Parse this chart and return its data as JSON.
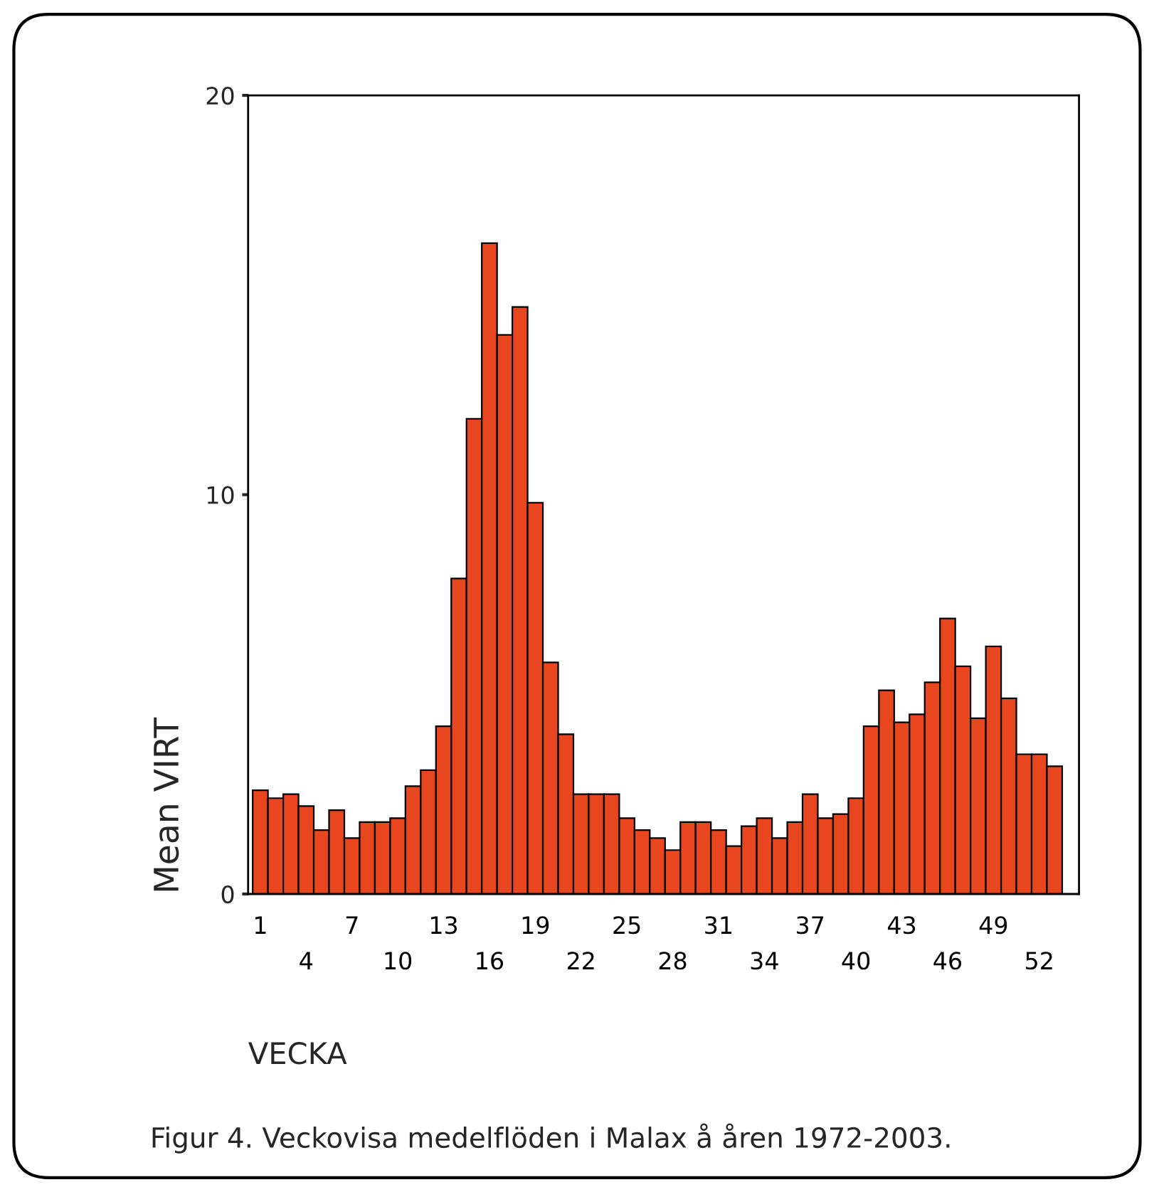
{
  "chart_data": {
    "type": "bar",
    "xlabel": "VECKA",
    "ylabel": "Mean VIRT",
    "annotations": [
      "Figur 4. Veckovisa medelflöden i Malax å åren 1972-2003."
    ],
    "categories": [
      "1",
      null,
      null,
      "4",
      null,
      null,
      "7",
      null,
      null,
      "10",
      null,
      null,
      "13",
      null,
      null,
      "16",
      null,
      null,
      "19",
      null,
      null,
      "22",
      null,
      null,
      "25",
      null,
      null,
      "28",
      null,
      null,
      "31",
      null,
      null,
      "34",
      null,
      null,
      "37",
      null,
      null,
      "40",
      null,
      null,
      "43",
      null,
      null,
      "46",
      null,
      null,
      "49",
      null,
      null,
      "52",
      null
    ],
    "values": [
      2.6,
      2.4,
      2.5,
      2.2,
      1.6,
      2.1,
      1.4,
      1.8,
      1.8,
      1.9,
      2.7,
      3.1,
      4.2,
      7.9,
      11.9,
      16.3,
      14.0,
      14.7,
      9.8,
      5.8,
      4.0,
      2.5,
      2.5,
      2.5,
      1.9,
      1.6,
      1.4,
      1.1,
      1.8,
      1.8,
      1.6,
      1.2,
      1.7,
      1.9,
      1.4,
      1.8,
      2.5,
      1.9,
      2.0,
      2.4,
      4.2,
      5.1,
      4.3,
      4.5,
      5.3,
      6.9,
      5.7,
      4.4,
      6.2,
      4.9,
      3.5,
      3.5,
      3.2
    ],
    "color": "#e8461f",
    "ylim": [
      0,
      20
    ],
    "yticks": [
      0,
      10,
      20
    ],
    "grid": false,
    "legend": false
  }
}
